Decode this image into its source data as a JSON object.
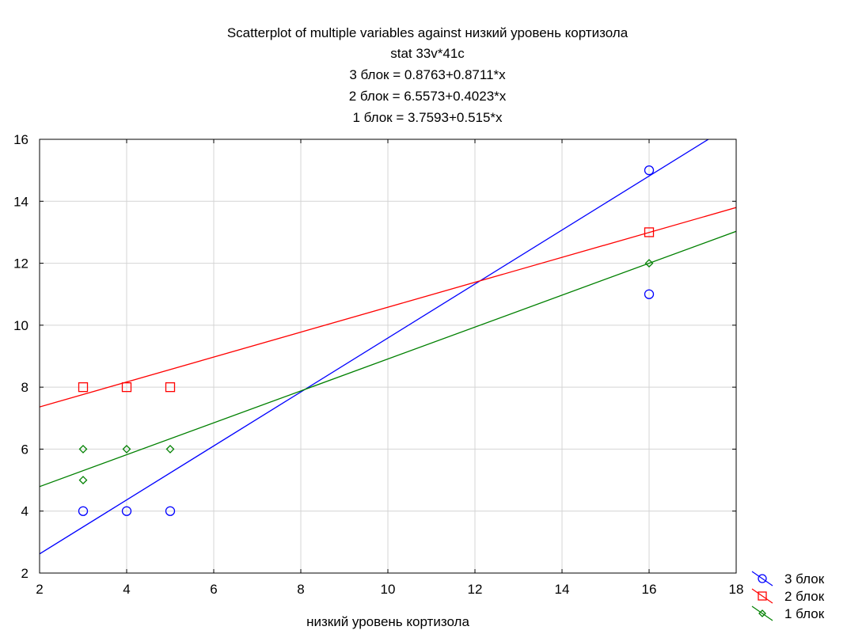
{
  "chart_data": {
    "type": "scatter",
    "title_lines": [
      "Scatterplot of multiple variables against низкий уровень кортизола",
      "stat 33v*41c",
      "3 блок = 0.8763+0.8711*x",
      "2 блок = 6.5573+0.4023*x",
      "1 блок = 3.7593+0.515*x"
    ],
    "xlabel": "низкий уровень кортизола",
    "ylabel": "",
    "xlim": [
      2,
      18
    ],
    "ylim": [
      2,
      16
    ],
    "xticks": [
      2,
      4,
      6,
      8,
      10,
      12,
      14,
      16,
      18
    ],
    "yticks": [
      2,
      4,
      6,
      8,
      10,
      12,
      14,
      16
    ],
    "grid": true,
    "legend_position": "bottom-right",
    "series": [
      {
        "name": "3 блок",
        "marker": "circle",
        "color": "#0000ff",
        "fit": {
          "intercept": 0.8763,
          "slope": 0.8711
        },
        "points": [
          {
            "x": 3,
            "y": 4
          },
          {
            "x": 4,
            "y": 4
          },
          {
            "x": 5,
            "y": 4
          },
          {
            "x": 16,
            "y": 15
          },
          {
            "x": 16,
            "y": 11
          }
        ]
      },
      {
        "name": "2 блок",
        "marker": "square",
        "color": "#ff0000",
        "fit": {
          "intercept": 6.5573,
          "slope": 0.4023
        },
        "points": [
          {
            "x": 3,
            "y": 8
          },
          {
            "x": 4,
            "y": 8
          },
          {
            "x": 5,
            "y": 8
          },
          {
            "x": 16,
            "y": 13
          }
        ]
      },
      {
        "name": "1 блок",
        "marker": "diamond",
        "color": "#008000",
        "fit": {
          "intercept": 3.7593,
          "slope": 0.515
        },
        "points": [
          {
            "x": 3,
            "y": 6
          },
          {
            "x": 3,
            "y": 5
          },
          {
            "x": 4,
            "y": 6
          },
          {
            "x": 5,
            "y": 6
          },
          {
            "x": 16,
            "y": 12
          }
        ]
      }
    ]
  }
}
